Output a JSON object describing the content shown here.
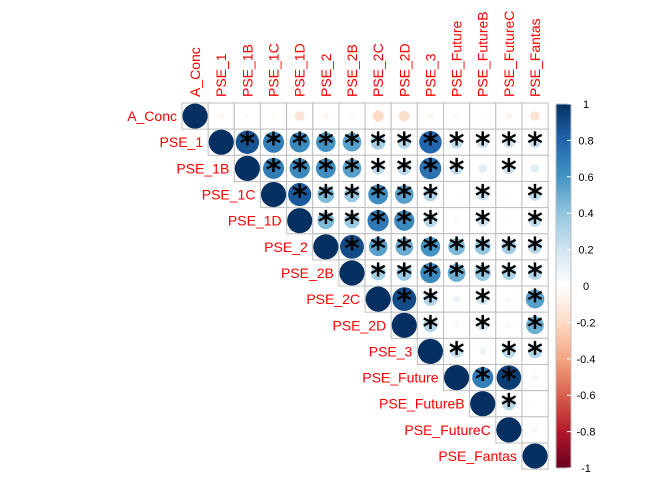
{
  "chart_data": {
    "type": "heatmap",
    "style": "correlation-circle-upper",
    "variables": [
      "A_Conc",
      "PSE_1",
      "PSE_1B",
      "PSE_1C",
      "PSE_1D",
      "PSE_2",
      "PSE_2B",
      "PSE_2C",
      "PSE_2D",
      "PSE_3",
      "PSE_Future",
      "PSE_FutureB",
      "PSE_FutureC",
      "PSE_Fantas"
    ],
    "matrix": [
      [
        1.0,
        -0.05,
        -0.03,
        -0.04,
        -0.15,
        -0.06,
        -0.04,
        -0.2,
        -0.18,
        -0.05,
        -0.04,
        -0.03,
        -0.06,
        -0.15
      ],
      [
        null,
        1.0,
        0.87,
        0.7,
        0.65,
        0.6,
        0.55,
        0.35,
        0.28,
        0.8,
        0.25,
        0.22,
        0.2,
        0.22
      ],
      [
        null,
        null,
        1.0,
        0.7,
        0.65,
        0.62,
        0.55,
        0.25,
        0.28,
        0.75,
        0.25,
        0.12,
        0.22,
        0.12
      ],
      [
        null,
        null,
        null,
        1.0,
        0.85,
        0.45,
        0.38,
        0.62,
        0.55,
        0.3,
        0.02,
        0.22,
        0.02,
        0.25
      ],
      [
        null,
        null,
        null,
        null,
        1.0,
        0.45,
        0.38,
        0.72,
        0.65,
        0.28,
        0.04,
        0.22,
        0.02,
        0.25
      ],
      [
        null,
        null,
        null,
        null,
        null,
        1.0,
        0.9,
        0.55,
        0.5,
        0.6,
        0.45,
        0.4,
        0.35,
        0.3
      ],
      [
        null,
        null,
        null,
        null,
        null,
        null,
        1.0,
        0.35,
        0.38,
        0.65,
        0.5,
        0.4,
        0.32,
        0.3
      ],
      [
        null,
        null,
        null,
        null,
        null,
        null,
        null,
        1.0,
        0.9,
        0.3,
        0.08,
        0.2,
        0.05,
        0.55
      ],
      [
        null,
        null,
        null,
        null,
        null,
        null,
        null,
        null,
        1.0,
        0.3,
        0.05,
        0.2,
        0.05,
        0.5
      ],
      [
        null,
        null,
        null,
        null,
        null,
        null,
        null,
        null,
        null,
        1.0,
        0.25,
        0.08,
        0.28,
        0.3
      ],
      [
        null,
        null,
        null,
        null,
        null,
        null,
        null,
        null,
        null,
        null,
        1.0,
        0.7,
        0.95,
        0.06
      ],
      [
        null,
        null,
        null,
        null,
        null,
        null,
        null,
        null,
        null,
        null,
        null,
        1.0,
        0.28,
        0.02
      ],
      [
        null,
        null,
        null,
        null,
        null,
        null,
        null,
        null,
        null,
        null,
        null,
        null,
        1.0,
        0.06
      ],
      [
        null,
        null,
        null,
        null,
        null,
        null,
        null,
        null,
        null,
        null,
        null,
        null,
        null,
        1.0
      ]
    ],
    "significant": [
      [
        0,
        0,
        0,
        0,
        0,
        0,
        0,
        0,
        0,
        0,
        0,
        0,
        0,
        0
      ],
      [
        0,
        0,
        1,
        1,
        1,
        1,
        1,
        1,
        1,
        1,
        1,
        1,
        1,
        1
      ],
      [
        0,
        0,
        0,
        1,
        1,
        1,
        1,
        1,
        1,
        1,
        1,
        0,
        1,
        0
      ],
      [
        0,
        0,
        0,
        0,
        1,
        1,
        1,
        1,
        1,
        1,
        0,
        1,
        0,
        1
      ],
      [
        0,
        0,
        0,
        0,
        0,
        1,
        1,
        1,
        1,
        1,
        0,
        1,
        0,
        1
      ],
      [
        0,
        0,
        0,
        0,
        0,
        0,
        1,
        1,
        1,
        1,
        1,
        1,
        1,
        1
      ],
      [
        0,
        0,
        0,
        0,
        0,
        0,
        0,
        1,
        1,
        1,
        1,
        1,
        1,
        1
      ],
      [
        0,
        0,
        0,
        0,
        0,
        0,
        0,
        0,
        1,
        1,
        0,
        1,
        0,
        1
      ],
      [
        0,
        0,
        0,
        0,
        0,
        0,
        0,
        0,
        0,
        1,
        0,
        1,
        0,
        1
      ],
      [
        0,
        0,
        0,
        0,
        0,
        0,
        0,
        0,
        0,
        0,
        1,
        0,
        1,
        1
      ],
      [
        0,
        0,
        0,
        0,
        0,
        0,
        0,
        0,
        0,
        0,
        0,
        1,
        1,
        0
      ],
      [
        0,
        0,
        0,
        0,
        0,
        0,
        0,
        0,
        0,
        0,
        0,
        0,
        1,
        0
      ],
      [
        0,
        0,
        0,
        0,
        0,
        0,
        0,
        0,
        0,
        0,
        0,
        0,
        0,
        0
      ],
      [
        0,
        0,
        0,
        0,
        0,
        0,
        0,
        0,
        0,
        0,
        0,
        0,
        0,
        0
      ]
    ],
    "significance_marker": "*",
    "colorbar": {
      "range": [
        -1,
        1
      ],
      "ticks": [
        "1",
        "0.8",
        "0.6",
        "0.4",
        "0.2",
        "0",
        "-0.2",
        "-0.4",
        "-0.6",
        "-0.8",
        "-1"
      ],
      "colors": [
        "#67001F",
        "#B2182B",
        "#D6604D",
        "#F4A582",
        "#FDDBC7",
        "#FFFFFF",
        "#D1E5F0",
        "#92C5DE",
        "#4393C3",
        "#2166AC",
        "#053061"
      ]
    },
    "label_color": "#FF0000",
    "grid_color": "#BEBEBE",
    "title": "",
    "legend_position": "right"
  }
}
